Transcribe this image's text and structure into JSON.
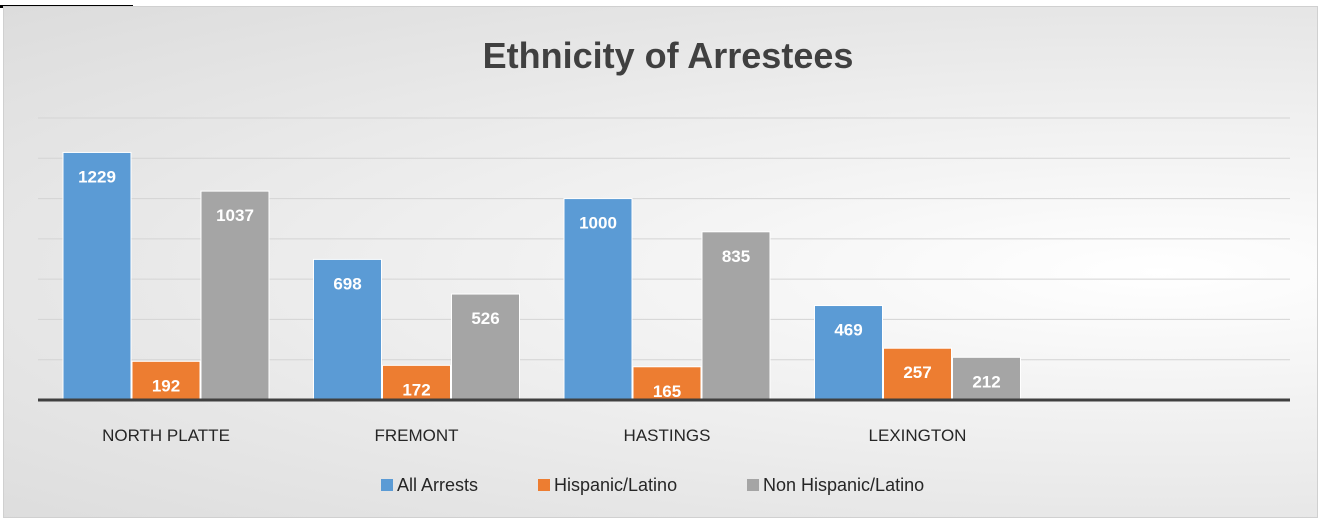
{
  "chart_data": {
    "type": "bar",
    "title": "Ethnicity of Arrestees",
    "categories": [
      "NORTH PLATTE",
      "FREMONT",
      "HASTINGS",
      "LEXINGTON"
    ],
    "series": [
      {
        "name": "All Arrests",
        "values": [
          1229,
          698,
          1000,
          469
        ],
        "color": "#5B9BD5"
      },
      {
        "name": "Hispanic/Latino",
        "values": [
          192,
          172,
          165,
          257
        ],
        "color": "#ED7D31"
      },
      {
        "name": "Non Hispanic/Latino",
        "values": [
          1037,
          526,
          835,
          212
        ],
        "color": "#A5A5A5"
      }
    ],
    "ylim": [
      0,
      1400
    ],
    "grid": true,
    "legend_position": "bottom"
  }
}
